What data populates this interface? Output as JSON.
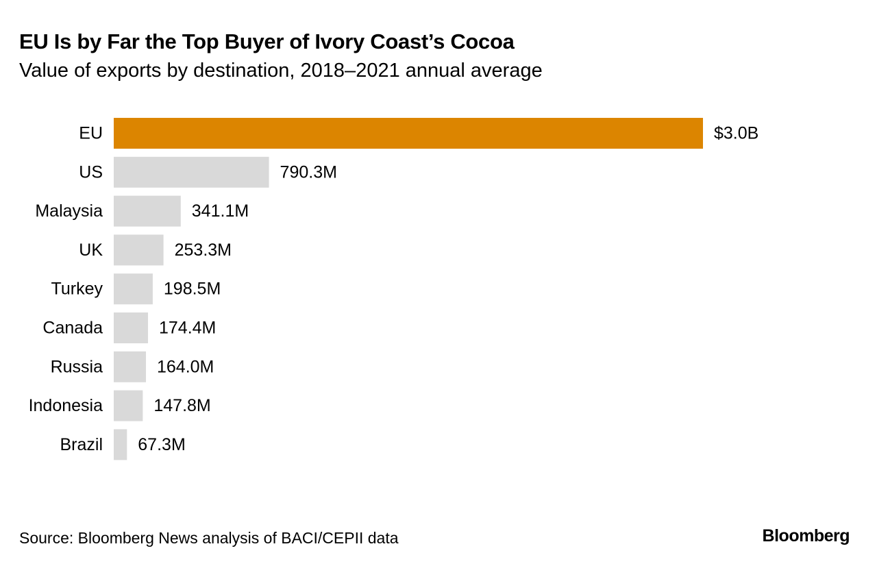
{
  "brand": "Bloomberg",
  "source": "Source: Bloomberg News analysis of BACI/CEPII data",
  "chart_data": {
    "type": "bar",
    "orientation": "horizontal",
    "title": "EU Is by Far the Top Buyer of Ivory Coast’s Cocoa",
    "subtitle": "Value of exports by destination, 2018–2021 annual average",
    "xlabel": "",
    "ylabel": "",
    "categories": [
      "EU",
      "US",
      "Malaysia",
      "UK",
      "Turkey",
      "Canada",
      "Russia",
      "Indonesia",
      "Brazil"
    ],
    "values": [
      3000000000,
      790300000,
      341100000,
      253300000,
      198500000,
      174400000,
      164000000,
      147800000,
      67300000
    ],
    "data_labels": [
      "$3.0B",
      "790.3M",
      "341.1M",
      "253.3M",
      "198.5M",
      "174.4M",
      "164.0M",
      "147.8M",
      "67.3M"
    ],
    "unit": "USD",
    "xlim": [
      0,
      3000000000
    ],
    "grid": false,
    "legend": "none",
    "colors": {
      "highlight": "#dc8500",
      "default": "#d9d9d9"
    },
    "highlight_index": 0
  }
}
